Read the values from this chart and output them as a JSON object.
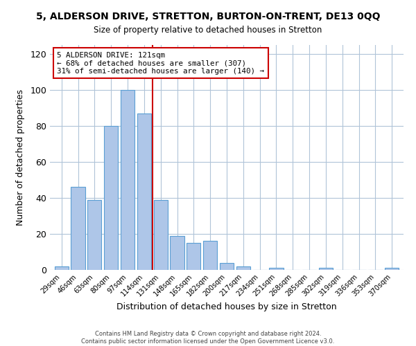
{
  "title": "5, ALDERSON DRIVE, STRETTON, BURTON-ON-TRENT, DE13 0QQ",
  "subtitle": "Size of property relative to detached houses in Stretton",
  "xlabel": "Distribution of detached houses by size in Stretton",
  "ylabel": "Number of detached properties",
  "bar_labels": [
    "29sqm",
    "46sqm",
    "63sqm",
    "80sqm",
    "97sqm",
    "114sqm",
    "131sqm",
    "148sqm",
    "165sqm",
    "182sqm",
    "200sqm",
    "217sqm",
    "234sqm",
    "251sqm",
    "268sqm",
    "285sqm",
    "302sqm",
    "319sqm",
    "336sqm",
    "353sqm",
    "370sqm"
  ],
  "bar_values": [
    2,
    46,
    39,
    80,
    100,
    87,
    39,
    19,
    15,
    16,
    4,
    2,
    0,
    1,
    0,
    0,
    1,
    0,
    0,
    0,
    1
  ],
  "bar_color": "#aec6e8",
  "bar_edgecolor": "#5a9fd4",
  "vline_x": 5.5,
  "vline_color": "#cc0000",
  "annotation_title": "5 ALDERSON DRIVE: 121sqm",
  "annotation_line1": "← 68% of detached houses are smaller (307)",
  "annotation_line2": "31% of semi-detached houses are larger (140) →",
  "annotation_box_edgecolor": "#cc0000",
  "ylim": [
    0,
    125
  ],
  "yticks": [
    0,
    20,
    40,
    60,
    80,
    100,
    120
  ],
  "footer1": "Contains HM Land Registry data © Crown copyright and database right 2024.",
  "footer2": "Contains public sector information licensed under the Open Government Licence v3.0.",
  "bg_color": "#ffffff",
  "grid_color": "#b0c4d8"
}
